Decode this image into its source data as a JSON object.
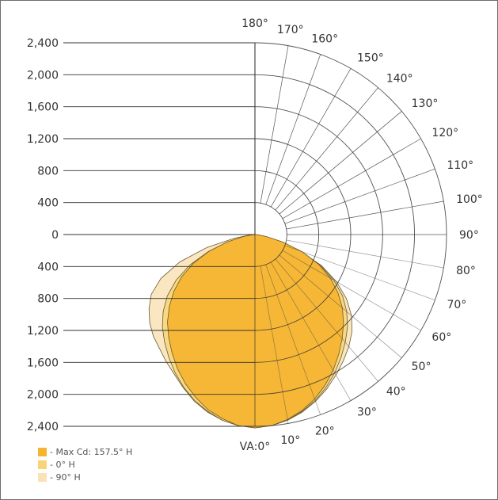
{
  "chart_data": {
    "type": "polar",
    "radial_tick_labels_upper": [
      "2,400",
      "2,000",
      "1,600",
      "1,200",
      "800",
      "400",
      "0"
    ],
    "radial_tick_labels_lower": [
      "400",
      "800",
      "1,200",
      "1,600",
      "2,000",
      "2,400"
    ],
    "radial_tick_values": [
      0,
      400,
      800,
      1200,
      1600,
      2000,
      2400
    ],
    "radial_max": 2400,
    "angle_labels": [
      {
        "angle": 0,
        "label": "VA:0°"
      },
      {
        "angle": 10,
        "label": "10°"
      },
      {
        "angle": 20,
        "label": "20°"
      },
      {
        "angle": 30,
        "label": "30°"
      },
      {
        "angle": 40,
        "label": "40°"
      },
      {
        "angle": 50,
        "label": "50°"
      },
      {
        "angle": 60,
        "label": "60°"
      },
      {
        "angle": 70,
        "label": "70°"
      },
      {
        "angle": 80,
        "label": "80°"
      },
      {
        "angle": 90,
        "label": "90°"
      },
      {
        "angle": 100,
        "label": "100°"
      },
      {
        "angle": 110,
        "label": "110°"
      },
      {
        "angle": 120,
        "label": "120°"
      },
      {
        "angle": 130,
        "label": "130°"
      },
      {
        "angle": 140,
        "label": "140°"
      },
      {
        "angle": 150,
        "label": "150°"
      },
      {
        "angle": 160,
        "label": "160°"
      },
      {
        "angle": 170,
        "label": "170°"
      },
      {
        "angle": 180,
        "label": "180°"
      }
    ],
    "series": [
      {
        "name": "- 90° H",
        "color": "#f9e3b6",
        "angles": [
          0,
          5,
          10,
          15,
          20,
          25,
          30,
          35,
          40,
          45,
          50,
          55,
          60,
          65,
          70,
          75,
          80,
          85,
          90
        ],
        "right_values": [
          2420,
          2400,
          2360,
          2300,
          2220,
          2130,
          2030,
          1930,
          1830,
          1720,
          1580,
          1400,
          1180,
          920,
          600,
          320,
          120,
          25,
          0
        ],
        "left_values": [
          2420,
          2400,
          2360,
          2300,
          2220,
          2120,
          2020,
          1940,
          1860,
          1800,
          1720,
          1620,
          1500,
          1300,
          1000,
          620,
          260,
          60,
          0
        ]
      },
      {
        "name": "- 0° H",
        "color": "#f7d577",
        "angles": [
          0,
          5,
          10,
          15,
          20,
          25,
          30,
          35,
          40,
          45,
          50,
          55,
          60,
          65,
          70,
          75,
          80,
          85,
          90
        ],
        "right_values": [
          2420,
          2400,
          2360,
          2290,
          2210,
          2110,
          2000,
          1880,
          1760,
          1640,
          1500,
          1340,
          1140,
          900,
          620,
          340,
          130,
          30,
          0
        ],
        "left_values": [
          2420,
          2400,
          2360,
          2290,
          2210,
          2110,
          2000,
          1880,
          1760,
          1640,
          1500,
          1340,
          1140,
          900,
          620,
          340,
          130,
          30,
          0
        ]
      },
      {
        "name": "- Max Cd: 157.5° H",
        "color": "#f5b531",
        "angles": [
          0,
          5,
          10,
          15,
          20,
          25,
          30,
          35,
          40,
          45,
          50,
          55,
          60,
          65,
          70,
          75,
          80,
          85,
          90
        ],
        "right_values": [
          2420,
          2400,
          2350,
          2280,
          2190,
          2080,
          1960,
          1830,
          1700,
          1570,
          1430,
          1270,
          1090,
          880,
          630,
          370,
          150,
          40,
          0
        ],
        "left_values": [
          2420,
          2400,
          2340,
          2270,
          2170,
          2060,
          1940,
          1810,
          1680,
          1550,
          1400,
          1240,
          1060,
          850,
          610,
          360,
          150,
          40,
          0
        ]
      }
    ],
    "legend_position": "bottom-left",
    "grid": true
  }
}
